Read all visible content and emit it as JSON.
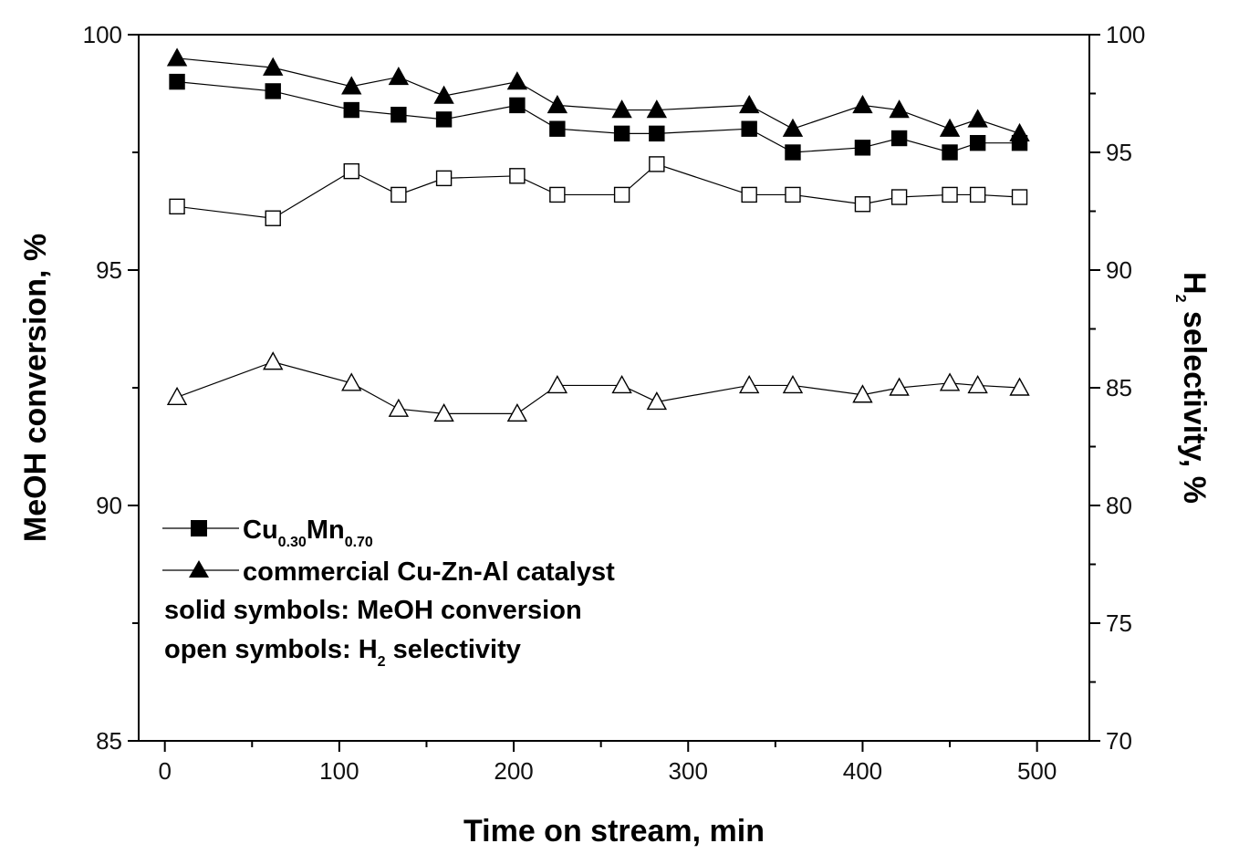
{
  "chart_data": {
    "type": "line",
    "xlabel": "Time on stream, min",
    "ylabel_left": "MeOH conversion, %",
    "ylabel_right": {
      "prefix": "H",
      "subscript": "2",
      "suffix": " selectivity, %"
    },
    "xlim": [
      -15,
      530
    ],
    "ylim_left": [
      85,
      100
    ],
    "ylim_right": [
      70,
      100
    ],
    "x_ticks": [
      "0",
      "100",
      "200",
      "300",
      "400",
      "500"
    ],
    "y_left_ticks": [
      "85",
      "90",
      "95",
      "100"
    ],
    "y_right_ticks": [
      "70",
      "75",
      "80",
      "85",
      "90",
      "95",
      "100"
    ],
    "grid": false,
    "legend_position": "lower-left",
    "legend": {
      "cu": {
        "base1": "Cu",
        "sub1": "0.30",
        "base2": "Mn",
        "sub2": "0.70"
      },
      "commercial": "commercial Cu-Zn-Al catalyst",
      "note_solid": "solid symbols: MeOH conversion",
      "note_open": {
        "prefix": "open symbols: H",
        "subscript": "2",
        "suffix": " selectivity"
      }
    },
    "series": [
      {
        "name": "Cu0.30Mn0.70",
        "quantity": "MeOH conversion",
        "axis": "left",
        "marker": "square",
        "filled": true,
        "x": [
          7,
          62,
          107,
          134,
          160,
          202,
          225,
          262,
          282,
          335,
          360,
          400,
          421,
          450,
          466,
          490
        ],
        "y": [
          99.0,
          98.8,
          98.4,
          98.3,
          98.2,
          98.5,
          98.0,
          97.9,
          97.9,
          98.0,
          97.5,
          97.6,
          97.8,
          97.5,
          97.7,
          97.7
        ]
      },
      {
        "name": "commercial Cu-Zn-Al catalyst",
        "quantity": "MeOH conversion",
        "axis": "left",
        "marker": "triangle",
        "filled": true,
        "x": [
          7,
          62,
          107,
          134,
          160,
          202,
          225,
          262,
          282,
          335,
          360,
          400,
          421,
          450,
          466,
          490
        ],
        "y": [
          99.5,
          99.3,
          98.9,
          99.1,
          98.7,
          99.0,
          98.5,
          98.4,
          98.4,
          98.5,
          98.0,
          98.5,
          98.4,
          98.0,
          98.2,
          97.9
        ]
      },
      {
        "name": "Cu0.30Mn0.70",
        "quantity": "H2 selectivity",
        "axis": "right",
        "marker": "square",
        "filled": false,
        "x": [
          7,
          62,
          107,
          134,
          160,
          202,
          225,
          262,
          282,
          335,
          360,
          400,
          421,
          450,
          466,
          490
        ],
        "y": [
          92.7,
          92.2,
          94.2,
          93.2,
          93.9,
          94.0,
          93.2,
          93.2,
          94.5,
          93.2,
          93.2,
          92.8,
          93.1,
          93.2,
          93.2,
          93.1
        ]
      },
      {
        "name": "commercial Cu-Zn-Al catalyst",
        "quantity": "H2 selectivity",
        "axis": "right",
        "marker": "triangle",
        "filled": false,
        "x": [
          7,
          62,
          107,
          134,
          160,
          202,
          225,
          262,
          282,
          335,
          360,
          400,
          421,
          450,
          466,
          490
        ],
        "y": [
          84.6,
          86.1,
          85.2,
          84.1,
          83.9,
          83.9,
          85.1,
          85.1,
          84.4,
          85.1,
          85.1,
          84.7,
          85.0,
          85.2,
          85.1,
          85.0
        ]
      }
    ]
  }
}
